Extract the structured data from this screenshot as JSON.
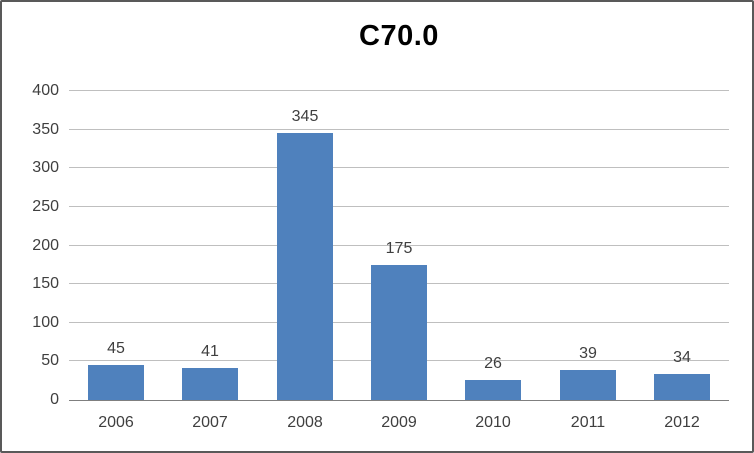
{
  "chart_data": {
    "type": "bar",
    "title": "C70.0",
    "categories": [
      "2006",
      "2007",
      "2008",
      "2009",
      "2010",
      "2011",
      "2012"
    ],
    "values": [
      45,
      41,
      345,
      175,
      26,
      39,
      34
    ],
    "value_labels": [
      "45",
      "41",
      "345",
      "175",
      "26",
      "39",
      "34"
    ],
    "xlabel": "",
    "ylabel": "",
    "ylim": [
      0,
      400
    ],
    "ytick_step": 50,
    "yticks": [
      0,
      50,
      100,
      150,
      200,
      250,
      300,
      350,
      400
    ],
    "grid": true,
    "legend": "none",
    "colors": {
      "bar_fill": "#4F81BD",
      "gridline": "#BFBFBF",
      "axis_line": "#7F7F7F",
      "label_text": "#3F3F3F",
      "title_text": "#000000",
      "frame_border": "#595959",
      "background": "#FFFFFF"
    }
  }
}
